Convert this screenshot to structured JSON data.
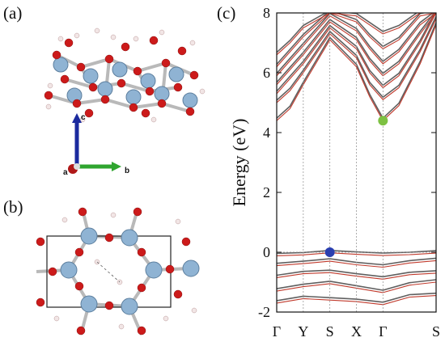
{
  "panels": {
    "a": "(a)",
    "b": "(b)",
    "c": "(c)"
  },
  "axes_triad": {
    "c": "c",
    "a": "a",
    "b": "b",
    "colors": {
      "c": "#1b2a9e",
      "a": "#b01818",
      "b": "#2fa52f"
    }
  },
  "atom_colors": {
    "metal": "#8fb3d3",
    "oxygen": "#cc1a1a",
    "hydrogen": "#f2e6e6"
  },
  "chart_data": {
    "type": "line",
    "title": "",
    "xlabel": "",
    "ylabel": "Energy (eV)",
    "ylim": [
      -2,
      8
    ],
    "yticks": [
      -2,
      0,
      2,
      4,
      6,
      8
    ],
    "kpath": [
      "Γ",
      "Y",
      "S",
      "X",
      "Γ",
      "S"
    ],
    "kpath_positions": [
      0,
      0.5,
      1,
      1.5,
      2,
      3
    ],
    "grid": "dotted vertical lines at high-symmetry points",
    "band_colors": {
      "spin_up": "#c0392b",
      "spin_down": "#606060"
    },
    "valence_band_maximum": {
      "k": "S",
      "energy": 0.0,
      "color": "#2a3fb0"
    },
    "conduction_band_minimum": {
      "k": "Γ",
      "energy": 4.4,
      "color": "#7dc142"
    },
    "fermi_level": 0.0,
    "series": [
      {
        "x": [
          0,
          0.5,
          1,
          1.5,
          2,
          2.5,
          3
        ],
        "y": [
          -0.12,
          -0.09,
          -0.02,
          -0.07,
          -0.11,
          -0.08,
          -0.03
        ]
      },
      {
        "x": [
          0,
          0.5,
          1,
          1.5,
          2,
          2.5,
          3
        ],
        "y": [
          -0.45,
          -0.38,
          -0.3,
          -0.42,
          -0.5,
          -0.36,
          -0.28
        ]
      },
      {
        "x": [
          0,
          0.5,
          1,
          1.5,
          2,
          2.5,
          3
        ],
        "y": [
          -0.85,
          -0.72,
          -0.68,
          -0.8,
          -0.9,
          -0.75,
          -0.7
        ]
      },
      {
        "x": [
          0,
          0.5,
          1,
          1.5,
          2,
          2.5,
          3
        ],
        "y": [
          -1.3,
          -1.15,
          -1.05,
          -1.2,
          -1.35,
          -1.1,
          -1.0
        ]
      },
      {
        "x": [
          0,
          0.5,
          1,
          1.5,
          2,
          2.5,
          3
        ],
        "y": [
          -1.7,
          -1.55,
          -1.6,
          -1.65,
          -1.75,
          -1.5,
          -1.45
        ]
      },
      {
        "x": [
          0,
          0.25,
          0.5,
          1,
          1.5,
          1.75,
          2,
          2.3,
          2.7,
          3
        ],
        "y": [
          4.4,
          4.8,
          5.6,
          7.1,
          6.2,
          5.2,
          4.4,
          4.9,
          6.3,
          7.6
        ]
      },
      {
        "x": [
          0,
          0.25,
          0.5,
          1,
          1.5,
          1.75,
          2,
          2.3,
          2.7,
          3
        ],
        "y": [
          5.0,
          5.4,
          6.0,
          7.3,
          6.5,
          5.6,
          5.1,
          5.5,
          6.7,
          7.8
        ]
      },
      {
        "x": [
          0,
          0.25,
          0.5,
          1,
          1.5,
          1.75,
          2,
          2.3,
          2.7,
          3
        ],
        "y": [
          5.3,
          5.8,
          6.3,
          7.5,
          6.8,
          6.0,
          5.5,
          5.9,
          7.0,
          8.0
        ]
      },
      {
        "x": [
          0,
          0.25,
          0.5,
          1,
          1.5,
          1.75,
          2,
          2.3,
          2.7,
          3
        ],
        "y": [
          5.6,
          6.1,
          6.6,
          7.7,
          7.1,
          6.4,
          5.9,
          6.3,
          7.3,
          8.0
        ]
      },
      {
        "x": [
          0,
          0.25,
          0.5,
          1,
          1.5,
          1.75,
          2,
          2.3,
          2.7,
          3
        ],
        "y": [
          5.9,
          6.4,
          6.9,
          7.9,
          7.4,
          6.8,
          6.3,
          6.7,
          7.6,
          8.0
        ]
      },
      {
        "x": [
          0,
          0.25,
          0.5,
          1,
          1.5,
          1.75,
          2,
          2.3,
          2.7,
          3
        ],
        "y": [
          6.2,
          6.7,
          7.2,
          8.0,
          7.7,
          7.2,
          6.8,
          7.1,
          7.9,
          8.0
        ]
      },
      {
        "x": [
          0,
          0.25,
          0.5,
          1,
          1.5,
          1.75,
          2,
          2.3,
          2.7,
          3
        ],
        "y": [
          6.6,
          7.0,
          7.5,
          8.0,
          7.9,
          7.6,
          7.3,
          7.5,
          8.0,
          8.0
        ]
      }
    ]
  }
}
